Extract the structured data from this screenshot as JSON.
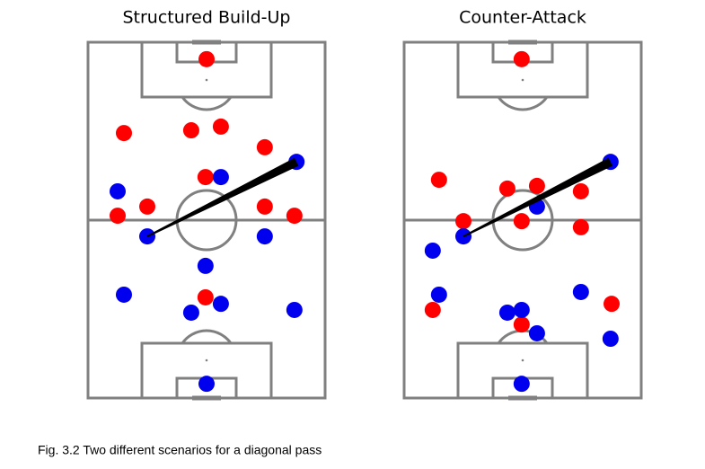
{
  "chart_data": [
    {
      "type": "scatter",
      "title": "Structured Build-Up",
      "xlim": [
        0,
        68
      ],
      "ylim": [
        0,
        105
      ],
      "series": [
        {
          "color": "#ff0000",
          "x": [
            34.0,
            10.3,
            29.6,
            38.1,
            50.7,
            33.7,
            8.5,
            17.0,
            50.7,
            59.2,
            33.7
          ],
          "values": [
            100.0,
            78.2,
            79.0,
            80.1,
            74.0,
            65.2,
            53.8,
            56.5,
            56.5,
            53.8,
            29.7
          ]
        },
        {
          "color": "#0000ee",
          "x": [
            59.8,
            38.1,
            8.5,
            17.0,
            50.7,
            33.7,
            10.3,
            29.6,
            38.1,
            59.2,
            34.0
          ],
          "values": [
            69.7,
            65.2,
            61.0,
            47.7,
            47.7,
            39.0,
            30.5,
            25.2,
            27.8,
            26.0,
            4.2
          ]
        }
      ],
      "pass": {
        "x": [
          17.0,
          59.8
        ],
        "y": [
          47.7,
          69.7
        ]
      }
    },
    {
      "type": "scatter",
      "title": "Counter-Attack",
      "xlim": [
        0,
        68
      ],
      "ylim": [
        0,
        105
      ],
      "series": [
        {
          "color": "#ff0000",
          "x": [
            33.7,
            10.0,
            29.6,
            38.1,
            50.7,
            17.0,
            33.7,
            50.7,
            59.5,
            8.2,
            33.7
          ],
          "values": [
            100.0,
            64.4,
            61.8,
            62.6,
            61.0,
            52.2,
            52.2,
            50.4,
            27.8,
            26.0,
            21.7
          ]
        },
        {
          "color": "#0000ee",
          "x": [
            59.2,
            38.1,
            17.0,
            8.2,
            10.0,
            50.7,
            29.6,
            33.7,
            38.1,
            59.2,
            33.7
          ],
          "values": [
            69.7,
            56.5,
            47.7,
            43.5,
            30.5,
            31.3,
            25.2,
            26.0,
            19.1,
            17.5,
            4.2
          ]
        }
      ],
      "pass": {
        "x": [
          17.0,
          59.2
        ],
        "y": [
          47.7,
          69.7
        ]
      }
    }
  ],
  "caption": "Fig. 3.2 Two different scenarios for a diagonal pass"
}
